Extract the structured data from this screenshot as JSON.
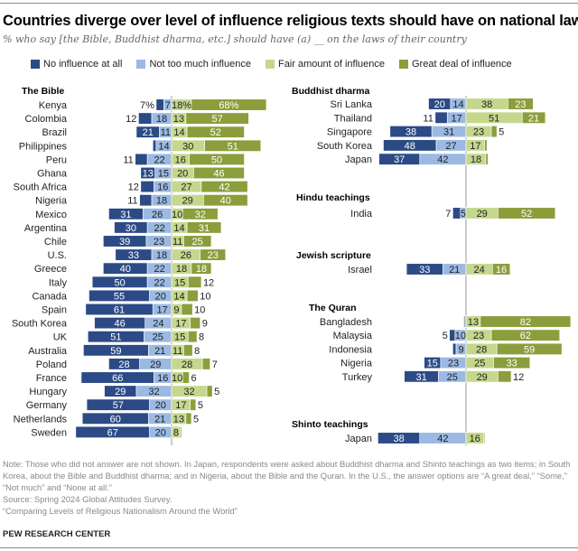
{
  "header": {
    "title": "Countries diverge over level of influence religious texts should have on national laws",
    "subtitle": "% who say [the Bible, Buddhist dharma, etc.] should have (a) __ on the laws of their country"
  },
  "colors": {
    "no_influence": "#2c4a86",
    "not_too_much": "#9bb9e3",
    "fair_amount": "#c5d78c",
    "great_deal": "#8b9e3b"
  },
  "chart_data": {
    "type": "bar",
    "orientation": "horizontal diverging stacked",
    "legend": [
      "No influence at all",
      "Not too much influence",
      "Fair amount of influence",
      "Great deal of influence"
    ],
    "legend_placement": "top",
    "groups": [
      {
        "name": "The Bible",
        "rows": [
          {
            "country": "Kenya",
            "values": [
              7,
              7,
              18,
              68
            ],
            "pct": true
          },
          {
            "country": "Colombia",
            "values": [
              12,
              18,
              13,
              57
            ]
          },
          {
            "country": "Brazil",
            "values": [
              21,
              11,
              14,
              52
            ]
          },
          {
            "country": "Philippines",
            "values": [
              3,
              14,
              30,
              51
            ]
          },
          {
            "country": "Peru",
            "values": [
              11,
              22,
              16,
              50
            ]
          },
          {
            "country": "Ghana",
            "values": [
              13,
              15,
              20,
              46
            ]
          },
          {
            "country": "South Africa",
            "values": [
              12,
              16,
              27,
              42
            ]
          },
          {
            "country": "Nigeria",
            "values": [
              11,
              18,
              29,
              40
            ]
          },
          {
            "country": "Mexico",
            "values": [
              31,
              26,
              10,
              32
            ]
          },
          {
            "country": "Argentina",
            "values": [
              30,
              22,
              14,
              31
            ]
          },
          {
            "country": "Chile",
            "values": [
              39,
              23,
              11,
              25
            ]
          },
          {
            "country": "U.S.",
            "values": [
              33,
              18,
              26,
              23
            ]
          },
          {
            "country": "Greece",
            "values": [
              40,
              22,
              18,
              18
            ]
          },
          {
            "country": "Italy",
            "values": [
              50,
              22,
              15,
              12
            ]
          },
          {
            "country": "Canada",
            "values": [
              55,
              20,
              14,
              10
            ]
          },
          {
            "country": "Spain",
            "values": [
              61,
              17,
              9,
              10
            ]
          },
          {
            "country": "South Korea",
            "values": [
              46,
              24,
              17,
              9
            ]
          },
          {
            "country": "UK",
            "values": [
              51,
              25,
              15,
              8
            ]
          },
          {
            "country": "Australia",
            "values": [
              59,
              21,
              11,
              8
            ]
          },
          {
            "country": "Poland",
            "values": [
              28,
              29,
              28,
              7
            ]
          },
          {
            "country": "France",
            "values": [
              66,
              16,
              10,
              6
            ]
          },
          {
            "country": "Hungary",
            "values": [
              29,
              32,
              32,
              5
            ]
          },
          {
            "country": "Germany",
            "values": [
              57,
              20,
              17,
              5
            ]
          },
          {
            "country": "Netherlands",
            "values": [
              60,
              21,
              13,
              5
            ]
          },
          {
            "country": "Sweden",
            "values": [
              67,
              20,
              8,
              1
            ]
          }
        ]
      },
      {
        "name": "Buddhist dharma",
        "rows": [
          {
            "country": "Sri Lanka",
            "values": [
              20,
              14,
              38,
              23
            ]
          },
          {
            "country": "Thailand",
            "values": [
              11,
              17,
              51,
              21
            ]
          },
          {
            "country": "Singapore",
            "values": [
              38,
              31,
              23,
              5
            ]
          },
          {
            "country": "South Korea",
            "values": [
              48,
              27,
              17,
              2
            ]
          },
          {
            "country": "Japan",
            "values": [
              37,
              42,
              18,
              2
            ]
          }
        ]
      },
      {
        "name": "Hindu teachings",
        "rows": [
          {
            "country": "India",
            "values": [
              7,
              5,
              29,
              52
            ]
          }
        ]
      },
      {
        "name": "Jewish scripture",
        "rows": [
          {
            "country": "Israel",
            "values": [
              33,
              21,
              24,
              16
            ]
          }
        ]
      },
      {
        "name": "The Quran",
        "rows": [
          {
            "country": "Bangladesh",
            "values": [
              1,
              1,
              13,
              82
            ]
          },
          {
            "country": "Malaysia",
            "values": [
              5,
              10,
              23,
              62
            ]
          },
          {
            "country": "Indonesia",
            "values": [
              3,
              9,
              28,
              59
            ]
          },
          {
            "country": "Nigeria",
            "values": [
              15,
              23,
              25,
              33
            ]
          },
          {
            "country": "Turkey",
            "values": [
              31,
              25,
              29,
              12
            ]
          }
        ]
      },
      {
        "name": "Shinto teachings",
        "rows": [
          {
            "country": "Japan",
            "values": [
              38,
              42,
              16,
              1
            ]
          }
        ]
      }
    ]
  },
  "footer": {
    "note": "Note: Those who did not answer are not shown. In Japan, respondents were asked about Buddhist dharma and Shinto teachings as two items; in South Korea, about the Bible and Buddhist dharma; and in Nigeria, about the Bible and the Quran. In the U.S., the answer options are “A great deal,” “Some,” “Not much” and “None at all.”",
    "source": "Source: Spring 2024 Global Attitudes Survey.",
    "report": "“Comparing Levels of Religious Nationalism Around the World”",
    "brand": "PEW RESEARCH CENTER"
  }
}
